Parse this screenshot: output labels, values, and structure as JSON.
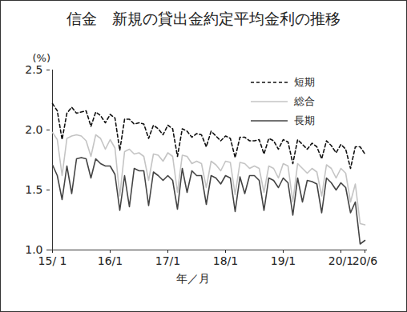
{
  "chart_data": {
    "type": "line",
    "title": "信金　新規の貸出金約定平均金利の推移",
    "xlabel": "年／月",
    "ylabel": "(%)",
    "categories": [
      "15/ 1",
      null,
      null,
      null,
      null,
      null,
      null,
      null,
      null,
      null,
      null,
      null,
      "16/1",
      null,
      null,
      null,
      null,
      null,
      null,
      null,
      null,
      null,
      null,
      null,
      "17/1",
      null,
      null,
      null,
      null,
      null,
      null,
      null,
      null,
      null,
      null,
      null,
      "18/1",
      null,
      null,
      null,
      null,
      null,
      null,
      null,
      null,
      null,
      null,
      null,
      "19/1",
      null,
      null,
      null,
      null,
      null,
      null,
      null,
      null,
      null,
      null,
      null,
      "20/1",
      null,
      null,
      null,
      null,
      "20/6"
    ],
    "series": [
      {
        "name": "短期",
        "color": "#111111",
        "line_style": "dashed",
        "values": [
          2.22,
          2.16,
          1.92,
          2.14,
          2.19,
          2.14,
          2.15,
          2.16,
          2.03,
          2.15,
          2.12,
          2.06,
          2.13,
          2.1,
          1.83,
          2.09,
          2.09,
          2.05,
          2.06,
          2.05,
          1.93,
          2.04,
          2.01,
          1.96,
          2.04,
          2.01,
          1.78,
          2.01,
          1.99,
          1.94,
          1.97,
          1.96,
          1.86,
          1.99,
          1.95,
          1.91,
          1.95,
          1.93,
          1.77,
          1.94,
          1.94,
          1.91,
          1.91,
          1.92,
          1.8,
          1.93,
          1.91,
          1.84,
          1.92,
          1.9,
          1.72,
          1.92,
          1.88,
          1.84,
          1.89,
          1.86,
          1.76,
          1.91,
          1.87,
          1.81,
          1.88,
          1.84,
          1.68,
          1.86,
          1.86,
          1.8
        ]
      },
      {
        "name": "総合",
        "color": "#c4c4c4",
        "line_style": "solid",
        "values": [
          1.98,
          1.92,
          1.62,
          1.93,
          1.95,
          1.96,
          1.95,
          1.91,
          1.78,
          1.96,
          1.93,
          1.84,
          1.92,
          1.85,
          1.45,
          1.82,
          1.84,
          1.8,
          1.81,
          1.78,
          1.58,
          1.8,
          1.79,
          1.74,
          1.81,
          1.78,
          1.48,
          1.79,
          1.78,
          1.72,
          1.74,
          1.72,
          1.52,
          1.74,
          1.71,
          1.66,
          1.74,
          1.73,
          1.46,
          1.73,
          1.72,
          1.68,
          1.7,
          1.68,
          1.48,
          1.7,
          1.68,
          1.6,
          1.72,
          1.7,
          1.4,
          1.72,
          1.68,
          1.64,
          1.68,
          1.65,
          1.45,
          1.71,
          1.68,
          1.6,
          1.68,
          1.64,
          1.4,
          1.55,
          1.22,
          1.21
        ]
      },
      {
        "name": "長期",
        "color": "#444444",
        "line_style": "solid",
        "values": [
          1.71,
          1.62,
          1.42,
          1.7,
          1.47,
          1.76,
          1.77,
          1.76,
          1.6,
          1.76,
          1.72,
          1.7,
          1.7,
          1.63,
          1.33,
          1.62,
          1.36,
          1.68,
          1.66,
          1.66,
          1.37,
          1.65,
          1.62,
          1.58,
          1.62,
          1.58,
          1.34,
          1.68,
          1.48,
          1.66,
          1.62,
          1.62,
          1.38,
          1.62,
          1.6,
          1.55,
          1.62,
          1.6,
          1.32,
          1.61,
          1.47,
          1.62,
          1.62,
          1.58,
          1.33,
          1.6,
          1.58,
          1.52,
          1.6,
          1.56,
          1.29,
          1.6,
          1.4,
          1.58,
          1.57,
          1.55,
          1.31,
          1.6,
          1.56,
          1.5,
          1.56,
          1.52,
          1.31,
          1.4,
          1.05,
          1.08
        ]
      }
    ],
    "ylim": [
      1.0,
      2.5
    ],
    "yticks": [
      {
        "value": 1.0,
        "label": "1.0"
      },
      {
        "value": 1.5,
        "label": "1.5"
      },
      {
        "value": 2.0,
        "label": "2.0"
      },
      {
        "value": 2.5,
        "label": "2.5"
      }
    ],
    "legend": "top-right"
  }
}
